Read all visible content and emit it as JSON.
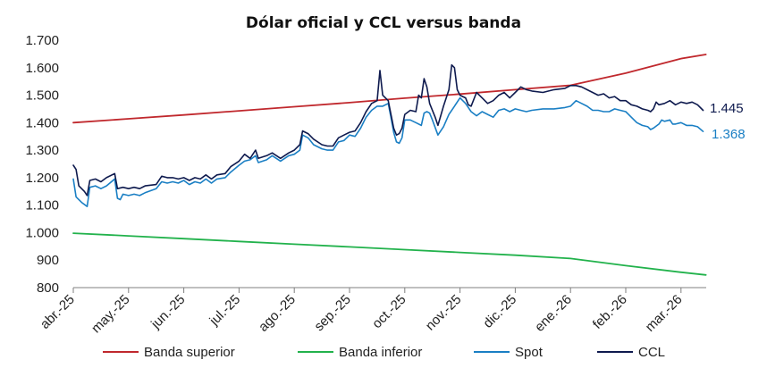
{
  "chart_data": {
    "type": "line",
    "title": "Dólar oficial y CCL versus banda",
    "xlabel": "",
    "ylabel": "",
    "ylim": [
      800,
      1700
    ],
    "yticks": [
      "800",
      "900",
      "1.000",
      "1.100",
      "1.200",
      "1.300",
      "1.400",
      "1.500",
      "1.600",
      "1.700"
    ],
    "categories": [
      "abr.-25",
      "may.-25",
      "jun.-25",
      "jul.-25",
      "ago.-25",
      "sep.-25",
      "oct.-25",
      "nov.-25",
      "dic.-25",
      "ene.-26",
      "feb.-26",
      "mar.-26"
    ],
    "grid": false,
    "legend_position": "bottom",
    "series": [
      {
        "name": "Banda superior",
        "color": "#c0282d",
        "points": [
          [
            0,
            1400
          ],
          [
            1,
            1414
          ],
          [
            2,
            1428
          ],
          [
            3,
            1443
          ],
          [
            4,
            1458
          ],
          [
            5,
            1473
          ],
          [
            6,
            1489
          ],
          [
            7,
            1504
          ],
          [
            8,
            1520
          ],
          [
            9,
            1536
          ],
          [
            10,
            1580
          ],
          [
            11,
            1633
          ],
          [
            11.45,
            1648
          ]
        ]
      },
      {
        "name": "Banda inferior",
        "color": "#22b24c",
        "points": [
          [
            0,
            998
          ],
          [
            1,
            988
          ],
          [
            2,
            978
          ],
          [
            3,
            968
          ],
          [
            4,
            958
          ],
          [
            5,
            948
          ],
          [
            6,
            938
          ],
          [
            7,
            928
          ],
          [
            8,
            918
          ],
          [
            9,
            906
          ],
          [
            10,
            880
          ],
          [
            11,
            856
          ],
          [
            11.45,
            846
          ]
        ]
      },
      {
        "name": "Spot",
        "color": "#1a7fc4",
        "end_label": "1.368",
        "points": [
          [
            0,
            1195
          ],
          [
            0.05,
            1130
          ],
          [
            0.15,
            1110
          ],
          [
            0.25,
            1095
          ],
          [
            0.3,
            1165
          ],
          [
            0.4,
            1170
          ],
          [
            0.5,
            1160
          ],
          [
            0.6,
            1170
          ],
          [
            0.75,
            1195
          ],
          [
            0.8,
            1125
          ],
          [
            0.85,
            1120
          ],
          [
            0.9,
            1140
          ],
          [
            1,
            1135
          ],
          [
            1.1,
            1140
          ],
          [
            1.2,
            1135
          ],
          [
            1.3,
            1145
          ],
          [
            1.5,
            1160
          ],
          [
            1.6,
            1185
          ],
          [
            1.7,
            1180
          ],
          [
            1.8,
            1185
          ],
          [
            1.9,
            1180
          ],
          [
            2,
            1190
          ],
          [
            2.1,
            1175
          ],
          [
            2.2,
            1185
          ],
          [
            2.3,
            1180
          ],
          [
            2.4,
            1195
          ],
          [
            2.5,
            1180
          ],
          [
            2.6,
            1195
          ],
          [
            2.75,
            1200
          ],
          [
            2.85,
            1220
          ],
          [
            3,
            1245
          ],
          [
            3.1,
            1260
          ],
          [
            3.2,
            1265
          ],
          [
            3.3,
            1280
          ],
          [
            3.35,
            1255
          ],
          [
            3.5,
            1265
          ],
          [
            3.6,
            1280
          ],
          [
            3.75,
            1260
          ],
          [
            3.9,
            1280
          ],
          [
            4,
            1285
          ],
          [
            4.1,
            1300
          ],
          [
            4.15,
            1355
          ],
          [
            4.25,
            1345
          ],
          [
            4.35,
            1320
          ],
          [
            4.5,
            1305
          ],
          [
            4.6,
            1300
          ],
          [
            4.7,
            1300
          ],
          [
            4.8,
            1330
          ],
          [
            4.9,
            1335
          ],
          [
            5,
            1355
          ],
          [
            5.1,
            1350
          ],
          [
            5.2,
            1380
          ],
          [
            5.3,
            1420
          ],
          [
            5.4,
            1445
          ],
          [
            5.5,
            1460
          ],
          [
            5.6,
            1460
          ],
          [
            5.7,
            1470
          ],
          [
            5.75,
            1420
          ],
          [
            5.8,
            1365
          ],
          [
            5.85,
            1330
          ],
          [
            5.9,
            1325
          ],
          [
            5.95,
            1345
          ],
          [
            6,
            1410
          ],
          [
            6.1,
            1410
          ],
          [
            6.2,
            1400
          ],
          [
            6.3,
            1390
          ],
          [
            6.35,
            1435
          ],
          [
            6.4,
            1440
          ],
          [
            6.45,
            1435
          ],
          [
            6.5,
            1410
          ],
          [
            6.6,
            1355
          ],
          [
            6.7,
            1385
          ],
          [
            6.8,
            1430
          ],
          [
            6.9,
            1460
          ],
          [
            7,
            1490
          ],
          [
            7.1,
            1470
          ],
          [
            7.2,
            1440
          ],
          [
            7.3,
            1425
          ],
          [
            7.4,
            1440
          ],
          [
            7.5,
            1430
          ],
          [
            7.6,
            1420
          ],
          [
            7.7,
            1445
          ],
          [
            7.8,
            1450
          ],
          [
            7.9,
            1440
          ],
          [
            8,
            1450
          ],
          [
            8.1,
            1445
          ],
          [
            8.2,
            1440
          ],
          [
            8.3,
            1445
          ],
          [
            8.5,
            1450
          ],
          [
            8.7,
            1450
          ],
          [
            8.9,
            1455
          ],
          [
            9,
            1460
          ],
          [
            9.1,
            1480
          ],
          [
            9.2,
            1470
          ],
          [
            9.3,
            1460
          ],
          [
            9.4,
            1445
          ],
          [
            9.5,
            1445
          ],
          [
            9.6,
            1440
          ],
          [
            9.7,
            1440
          ],
          [
            9.8,
            1450
          ],
          [
            9.9,
            1445
          ],
          [
            10,
            1440
          ],
          [
            10.1,
            1420
          ],
          [
            10.2,
            1400
          ],
          [
            10.3,
            1390
          ],
          [
            10.4,
            1385
          ],
          [
            10.45,
            1375
          ],
          [
            10.5,
            1380
          ],
          [
            10.6,
            1395
          ],
          [
            10.65,
            1410
          ],
          [
            10.7,
            1405
          ],
          [
            10.8,
            1410
          ],
          [
            10.85,
            1395
          ],
          [
            10.9,
            1395
          ],
          [
            11,
            1400
          ],
          [
            11.1,
            1390
          ],
          [
            11.2,
            1390
          ],
          [
            11.3,
            1385
          ],
          [
            11.4,
            1368
          ]
        ]
      },
      {
        "name": "CCL",
        "color": "#0e1a4e",
        "end_label": "1.445",
        "points": [
          [
            0,
            1245
          ],
          [
            0.05,
            1230
          ],
          [
            0.1,
            1170
          ],
          [
            0.2,
            1150
          ],
          [
            0.25,
            1135
          ],
          [
            0.3,
            1190
          ],
          [
            0.4,
            1195
          ],
          [
            0.5,
            1185
          ],
          [
            0.6,
            1200
          ],
          [
            0.75,
            1215
          ],
          [
            0.8,
            1160
          ],
          [
            0.9,
            1165
          ],
          [
            1,
            1160
          ],
          [
            1.1,
            1165
          ],
          [
            1.2,
            1160
          ],
          [
            1.3,
            1170
          ],
          [
            1.5,
            1175
          ],
          [
            1.6,
            1205
          ],
          [
            1.7,
            1200
          ],
          [
            1.8,
            1200
          ],
          [
            1.9,
            1195
          ],
          [
            2,
            1200
          ],
          [
            2.1,
            1190
          ],
          [
            2.2,
            1200
          ],
          [
            2.3,
            1195
          ],
          [
            2.4,
            1210
          ],
          [
            2.5,
            1195
          ],
          [
            2.6,
            1210
          ],
          [
            2.75,
            1215
          ],
          [
            2.85,
            1240
          ],
          [
            3,
            1260
          ],
          [
            3.1,
            1285
          ],
          [
            3.2,
            1270
          ],
          [
            3.3,
            1300
          ],
          [
            3.35,
            1270
          ],
          [
            3.5,
            1280
          ],
          [
            3.6,
            1290
          ],
          [
            3.75,
            1270
          ],
          [
            3.9,
            1290
          ],
          [
            4,
            1300
          ],
          [
            4.1,
            1320
          ],
          [
            4.15,
            1370
          ],
          [
            4.25,
            1360
          ],
          [
            4.35,
            1340
          ],
          [
            4.5,
            1320
          ],
          [
            4.6,
            1315
          ],
          [
            4.7,
            1315
          ],
          [
            4.8,
            1345
          ],
          [
            4.9,
            1355
          ],
          [
            5,
            1365
          ],
          [
            5.1,
            1370
          ],
          [
            5.2,
            1400
          ],
          [
            5.3,
            1440
          ],
          [
            5.4,
            1470
          ],
          [
            5.5,
            1480
          ],
          [
            5.55,
            1590
          ],
          [
            5.6,
            1500
          ],
          [
            5.7,
            1480
          ],
          [
            5.8,
            1380
          ],
          [
            5.85,
            1355
          ],
          [
            5.9,
            1360
          ],
          [
            5.95,
            1380
          ],
          [
            6,
            1430
          ],
          [
            6.1,
            1445
          ],
          [
            6.2,
            1440
          ],
          [
            6.25,
            1500
          ],
          [
            6.3,
            1490
          ],
          [
            6.35,
            1560
          ],
          [
            6.4,
            1530
          ],
          [
            6.45,
            1470
          ],
          [
            6.55,
            1420
          ],
          [
            6.6,
            1390
          ],
          [
            6.7,
            1460
          ],
          [
            6.8,
            1520
          ],
          [
            6.85,
            1610
          ],
          [
            6.9,
            1600
          ],
          [
            6.95,
            1520
          ],
          [
            7,
            1500
          ],
          [
            7.1,
            1490
          ],
          [
            7.15,
            1465
          ],
          [
            7.2,
            1460
          ],
          [
            7.3,
            1510
          ],
          [
            7.4,
            1490
          ],
          [
            7.5,
            1470
          ],
          [
            7.6,
            1480
          ],
          [
            7.7,
            1500
          ],
          [
            7.8,
            1510
          ],
          [
            7.9,
            1490
          ],
          [
            8,
            1510
          ],
          [
            8.1,
            1530
          ],
          [
            8.2,
            1520
          ],
          [
            8.3,
            1515
          ],
          [
            8.5,
            1510
          ],
          [
            8.7,
            1520
          ],
          [
            8.9,
            1525
          ],
          [
            9,
            1535
          ],
          [
            9.1,
            1535
          ],
          [
            9.2,
            1530
          ],
          [
            9.3,
            1520
          ],
          [
            9.4,
            1510
          ],
          [
            9.5,
            1500
          ],
          [
            9.6,
            1505
          ],
          [
            9.7,
            1490
          ],
          [
            9.8,
            1495
          ],
          [
            9.9,
            1480
          ],
          [
            10,
            1480
          ],
          [
            10.1,
            1465
          ],
          [
            10.2,
            1460
          ],
          [
            10.3,
            1450
          ],
          [
            10.4,
            1445
          ],
          [
            10.45,
            1440
          ],
          [
            10.5,
            1450
          ],
          [
            10.55,
            1475
          ],
          [
            10.6,
            1465
          ],
          [
            10.7,
            1470
          ],
          [
            10.8,
            1480
          ],
          [
            10.9,
            1465
          ],
          [
            11,
            1475
          ],
          [
            11.1,
            1470
          ],
          [
            11.2,
            1475
          ],
          [
            11.3,
            1465
          ],
          [
            11.4,
            1445
          ]
        ]
      }
    ]
  }
}
